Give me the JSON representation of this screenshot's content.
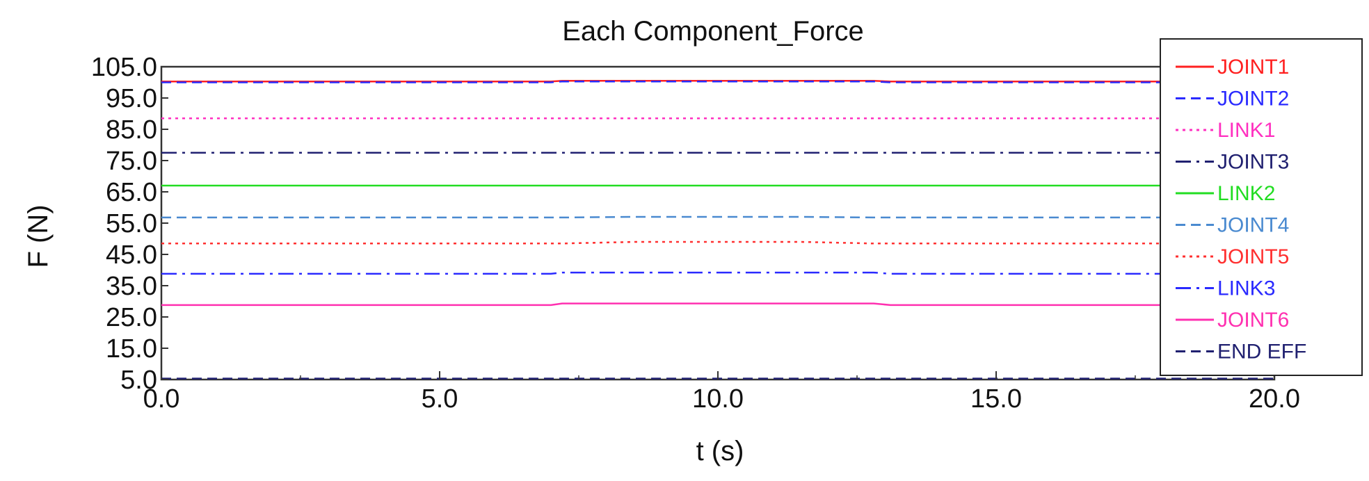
{
  "chart_data": {
    "type": "line",
    "title": "Each Component_Force",
    "xlabel": "t (s)",
    "ylabel": "F (N)",
    "xlim": [
      0,
      20
    ],
    "ylim": [
      5,
      105
    ],
    "x_ticks": [
      "0.0",
      "5.0",
      "10.0",
      "15.0",
      "20.0"
    ],
    "y_ticks": [
      "5.0",
      "15.0",
      "25.0",
      "35.0",
      "45.0",
      "55.0",
      "65.0",
      "75.0",
      "85.0",
      "95.0",
      "105.0"
    ],
    "x_tick_values": [
      0,
      5,
      10,
      15,
      20
    ],
    "y_tick_values": [
      5,
      15,
      25,
      35,
      45,
      55,
      65,
      75,
      85,
      95,
      105
    ],
    "grid": false,
    "legend_position": "top-right",
    "x": [
      0,
      7,
      7.2,
      8.5,
      11.5,
      12.8,
      13.1,
      18,
      20
    ],
    "series": [
      {
        "name": "JOINT1",
        "color": "#ff2020",
        "dash": "solid",
        "values": [
          100.3,
          100.3,
          100.5,
          100.5,
          100.5,
          100.5,
          100.3,
          100.3,
          100.3
        ]
      },
      {
        "name": "JOINT2",
        "color": "#2a2aff",
        "dash": "dash",
        "values": [
          100.0,
          100.0,
          100.3,
          100.3,
          100.3,
          100.3,
          100.0,
          100.0,
          100.0
        ]
      },
      {
        "name": "LINK1",
        "color": "#ff30c0",
        "dash": "dot",
        "values": [
          88.5,
          88.5,
          88.5,
          88.5,
          88.5,
          88.5,
          88.5,
          88.5,
          88.5
        ]
      },
      {
        "name": "JOINT3",
        "color": "#202070",
        "dash": "dashdot",
        "values": [
          77.5,
          77.5,
          77.5,
          77.5,
          77.5,
          77.5,
          77.5,
          77.5,
          77.5
        ]
      },
      {
        "name": "LINK2",
        "color": "#22dd22",
        "dash": "solid",
        "values": [
          67.0,
          67.0,
          67.0,
          67.0,
          67.0,
          67.0,
          67.0,
          67.0,
          67.0
        ]
      },
      {
        "name": "JOINT4",
        "color": "#4a8ad0",
        "dash": "dash",
        "values": [
          56.8,
          56.8,
          56.8,
          57.0,
          57.0,
          56.8,
          56.8,
          56.8,
          56.8
        ]
      },
      {
        "name": "JOINT5",
        "color": "#ff3030",
        "dash": "dot",
        "values": [
          48.5,
          48.5,
          48.5,
          49.0,
          49.0,
          48.5,
          48.5,
          48.5,
          48.5
        ]
      },
      {
        "name": "LINK3",
        "color": "#2a2aff",
        "dash": "dashdot",
        "values": [
          38.8,
          38.8,
          39.2,
          39.2,
          39.2,
          39.2,
          38.8,
          38.8,
          38.8
        ]
      },
      {
        "name": "JOINT6",
        "color": "#ff30b0",
        "dash": "solid",
        "values": [
          28.8,
          28.8,
          29.3,
          29.3,
          29.3,
          29.3,
          28.8,
          28.8,
          28.8
        ]
      },
      {
        "name": "END EFF",
        "color": "#202070",
        "dash": "dash",
        "values": [
          5.3,
          5.3,
          5.3,
          5.3,
          5.3,
          5.3,
          5.3,
          5.3,
          5.3
        ]
      }
    ]
  }
}
